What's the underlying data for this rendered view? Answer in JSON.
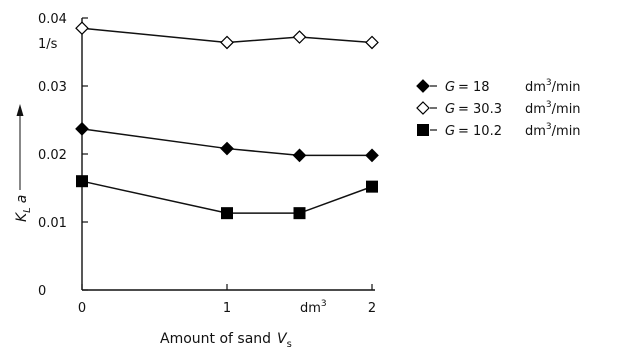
{
  "chart_data": {
    "type": "line",
    "xlabel": "Amount of sand",
    "xlabel_symbol": "V",
    "xlabel_subscript": "s",
    "ylabel_symbol_main": "K",
    "ylabel_symbol_sub": "L",
    "ylabel_symbol_tail": "a",
    "y_unit": "1/s",
    "x_unit": "dm",
    "x_unit_sup": "3",
    "x_ticks": [
      {
        "value": 0,
        "label": "0"
      },
      {
        "value": 1,
        "label": "1"
      },
      {
        "value": 2,
        "label": "2"
      }
    ],
    "y_ticks": [
      {
        "value": 0,
        "label": "0"
      },
      {
        "value": 0.01,
        "label": "0.01"
      },
      {
        "value": 0.02,
        "label": "0.02"
      },
      {
        "value": 0.03,
        "label": "0.03"
      },
      {
        "value": 0.04,
        "label": "0.04"
      }
    ],
    "xlim": [
      0,
      2
    ],
    "ylim": [
      0,
      0.04
    ],
    "grid": false,
    "legend_position": "right",
    "series": [
      {
        "legend_prefix": "G",
        "legend_value": "= 18",
        "legend_unit": "dm",
        "legend_unit_sup": "3",
        "legend_unit_tail": "/min",
        "marker": "filled-diamond",
        "x": [
          0,
          1,
          1.5,
          2
        ],
        "y": [
          0.0237,
          0.0208,
          0.0198,
          0.0198
        ]
      },
      {
        "legend_prefix": "G",
        "legend_value": "= 30.3",
        "legend_unit": "dm",
        "legend_unit_sup": "3",
        "legend_unit_tail": "/min",
        "marker": "open-diamond",
        "x": [
          0,
          1,
          1.5,
          2
        ],
        "y": [
          0.0385,
          0.0364,
          0.0372,
          0.0364
        ]
      },
      {
        "legend_prefix": "G",
        "legend_value": "= 10.2",
        "legend_unit": "dm",
        "legend_unit_sup": "3",
        "legend_unit_tail": "/min",
        "marker": "filled-square",
        "x": [
          0,
          1,
          1.5,
          2
        ],
        "y": [
          0.016,
          0.0113,
          0.0113,
          0.0152
        ]
      }
    ]
  }
}
